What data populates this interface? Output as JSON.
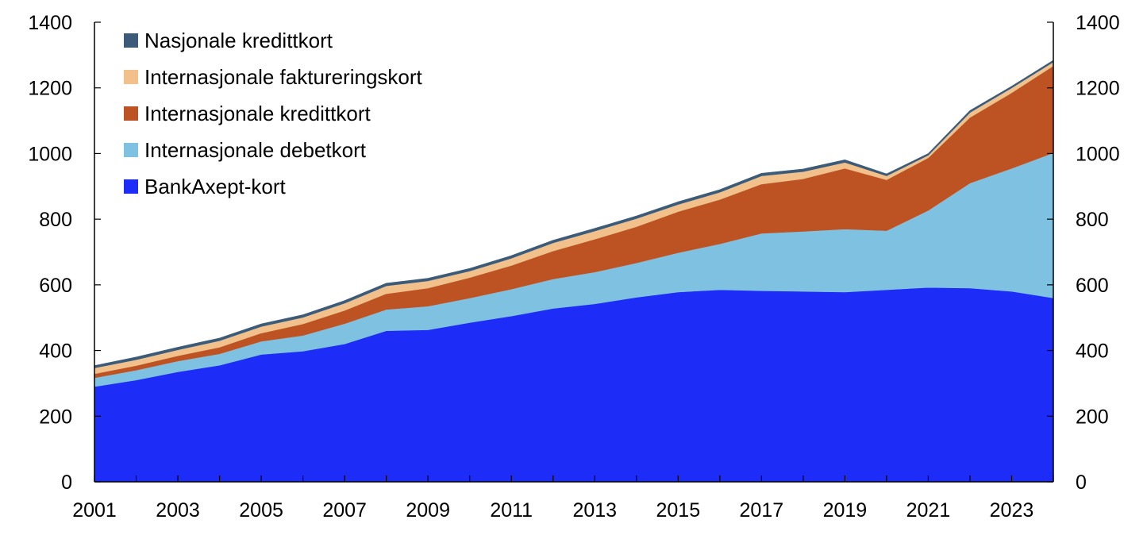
{
  "chart_data": {
    "type": "area",
    "stacked": true,
    "title": "",
    "xlabel": "",
    "ylabel": "",
    "x": [
      2001,
      2002,
      2003,
      2004,
      2005,
      2006,
      2007,
      2008,
      2009,
      2010,
      2011,
      2012,
      2013,
      2014,
      2015,
      2016,
      2017,
      2018,
      2019,
      2020,
      2021,
      2022,
      2023,
      2024
    ],
    "x_tick_labels": [
      "2001",
      "2003",
      "2005",
      "2007",
      "2009",
      "2011",
      "2013",
      "2015",
      "2017",
      "2019",
      "2021",
      "2023"
    ],
    "x_tick_values": [
      2001,
      2003,
      2005,
      2007,
      2009,
      2011,
      2013,
      2015,
      2017,
      2019,
      2021,
      2023
    ],
    "xlim": [
      2001,
      2024
    ],
    "ylim": [
      0,
      1400
    ],
    "y_ticks": [
      0,
      200,
      400,
      600,
      800,
      1000,
      1200,
      1400
    ],
    "y_tick_labels": [
      "0",
      "200",
      "400",
      "600",
      "800",
      "1000",
      "1200",
      "1400"
    ],
    "right_axis": true,
    "grid": false,
    "legend_position": "top-left",
    "series": [
      {
        "name": "BankAxept-kort",
        "color": "#1e2cf7",
        "values": [
          290,
          310,
          335,
          355,
          388,
          398,
          420,
          460,
          463,
          485,
          505,
          528,
          542,
          562,
          578,
          585,
          582,
          580,
          578,
          585,
          592,
          590,
          580,
          560
        ]
      },
      {
        "name": "Internasjonale debetkort",
        "color": "#7fc1e1",
        "values": [
          27,
          30,
          33,
          35,
          40,
          48,
          62,
          65,
          72,
          75,
          82,
          90,
          97,
          105,
          120,
          140,
          175,
          183,
          192,
          180,
          235,
          320,
          375,
          442
        ]
      },
      {
        "name": "Internasjonale kredittkort",
        "color": "#bd5223",
        "values": [
          12,
          14,
          16,
          20,
          25,
          35,
          40,
          48,
          55,
          62,
          72,
          85,
          100,
          110,
          125,
          135,
          150,
          160,
          185,
          155,
          160,
          200,
          230,
          265
        ]
      },
      {
        "name": "Internasjonale faktureringskort",
        "color": "#f2c08a",
        "values": [
          18,
          18,
          18,
          20,
          20,
          20,
          22,
          24,
          22,
          20,
          22,
          25,
          25,
          25,
          22,
          22,
          25,
          22,
          18,
          12,
          8,
          15,
          15,
          12
        ]
      },
      {
        "name": "Nasjonale kredittkort",
        "color": "#3b5b78",
        "values": [
          7,
          8,
          8,
          8,
          8,
          8,
          8,
          8,
          8,
          8,
          8,
          8,
          8,
          8,
          8,
          8,
          8,
          8,
          8,
          6,
          5,
          6,
          5,
          5
        ]
      }
    ]
  }
}
